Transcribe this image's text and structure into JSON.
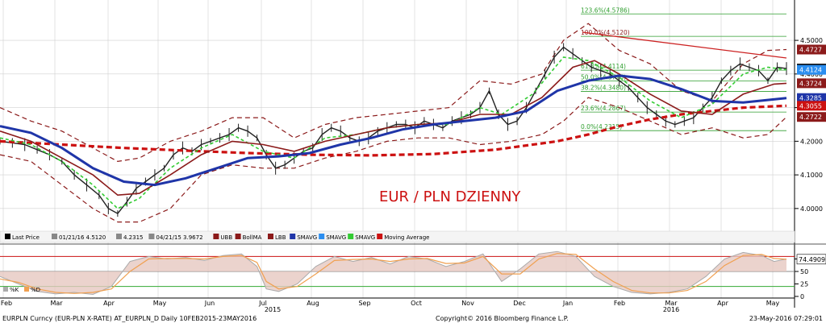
{
  "chart_data": {
    "type": "line",
    "title": "EUR / PLN DZIENNY",
    "footer": {
      "left": "EURPLN Curncy (EUR-PLN X-RATE) AT_EURPLN_D  Daily 10FEB2015-23MAY2016",
      "center": "Copyright© 2016 Bloomberg Finance L.P.",
      "right": "23-May-2016 07:29:01"
    },
    "legend": [
      {
        "label": "Last Price",
        "color": "#000000"
      },
      {
        "label": "01/21/16 4.5120",
        "color": "#888888"
      },
      {
        "label": "4.2315",
        "color": "#888888"
      },
      {
        "label": "04/21/15 3.9672",
        "color": "#888888"
      },
      {
        "label": "UBB",
        "color": "#8b1a1a"
      },
      {
        "label": "BollMA",
        "color": "#8b1a1a"
      },
      {
        "label": "LBB",
        "color": "#8b1a1a"
      },
      {
        "label": "SMAVG",
        "color": "#1f35a8"
      },
      {
        "label": "SMAVG",
        "color": "#2b8ef0"
      },
      {
        "label": "SMAVG",
        "color": "#33cc33"
      },
      {
        "label": "Moving Average",
        "color": "#cc1111"
      }
    ],
    "y_ticks": [
      "4.5000",
      "4.4000",
      "4.3000",
      "4.2000",
      "4.1000",
      "4.0000"
    ],
    "ylim": [
      3.935,
      4.62
    ],
    "x_labels": [
      "Feb",
      "Mar",
      "Apr",
      "May",
      "Jun",
      "Jul",
      "Aug",
      "Sep",
      "Oct",
      "Nov",
      "Dec",
      "Jan",
      "Feb",
      "Mar",
      "Apr",
      "May"
    ],
    "year_labels": [
      "2015",
      "2016"
    ],
    "fib": [
      {
        "label": "123.6%(4.5786)",
        "value": 4.5786
      },
      {
        "label": "100.0%(4.5120)",
        "value": 4.512
      },
      {
        "label": "61.8%(4.4114)",
        "value": 4.4114
      },
      {
        "label": "50.0%(4.3796)",
        "value": 4.3796
      },
      {
        "label": "38.2%(4.3480)",
        "value": 4.348
      },
      {
        "label": "23.6%(4.2867)",
        "value": 4.2867
      },
      {
        "label": "0.0%(4.2315)",
        "value": 4.2315
      }
    ],
    "price_tags": [
      {
        "label": "4.4727",
        "value": 4.4727,
        "color": "#8b1a1a"
      },
      {
        "label": "4.4161",
        "value": 4.4161,
        "color": "#000000"
      },
      {
        "label": "4.4124",
        "value": 4.4124,
        "color": "#2b8ef0"
      },
      {
        "label": "4.3724",
        "value": 4.3724,
        "color": "#8b1a1a"
      },
      {
        "label": "4.3285",
        "value": 4.3285,
        "color": "#1f35a8"
      },
      {
        "label": "4.3055",
        "value": 4.3055,
        "color": "#cc1111"
      },
      {
        "label": "4.2722",
        "value": 4.2722,
        "color": "#8b1a1a"
      }
    ],
    "lower": {
      "legend": [
        {
          "label": "%K",
          "color": "#aaaaaa"
        },
        {
          "label": "%D",
          "color": "#f0a050"
        }
      ],
      "ylim": [
        0,
        100
      ],
      "y_ticks": [
        "75",
        "50",
        "25",
        "0"
      ],
      "levels": [
        80,
        50,
        20
      ],
      "value_tag": "74.4909"
    },
    "series": {
      "price": [
        [
          0,
          4.2
        ],
        [
          4,
          4.195
        ],
        [
          8,
          4.19
        ],
        [
          12,
          4.175
        ],
        [
          16,
          4.16
        ],
        [
          20,
          4.14
        ],
        [
          24,
          4.1
        ],
        [
          28,
          4.07
        ],
        [
          32,
          4.04
        ],
        [
          35,
          4.0
        ],
        [
          38,
          3.985
        ],
        [
          41,
          4.02
        ],
        [
          44,
          4.06
        ],
        [
          47,
          4.08
        ],
        [
          50,
          4.1
        ],
        [
          53,
          4.12
        ],
        [
          56,
          4.16
        ],
        [
          59,
          4.18
        ],
        [
          62,
          4.17
        ],
        [
          65,
          4.19
        ],
        [
          68,
          4.2
        ],
        [
          71,
          4.21
        ],
        [
          74,
          4.22
        ],
        [
          77,
          4.24
        ],
        [
          80,
          4.23
        ],
        [
          83,
          4.21
        ],
        [
          86,
          4.16
        ],
        [
          89,
          4.12
        ],
        [
          92,
          4.13
        ],
        [
          95,
          4.15
        ],
        [
          98,
          4.17
        ],
        [
          101,
          4.18
        ],
        [
          104,
          4.22
        ],
        [
          107,
          4.24
        ],
        [
          110,
          4.23
        ],
        [
          113,
          4.21
        ],
        [
          116,
          4.2
        ],
        [
          119,
          4.21
        ],
        [
          122,
          4.23
        ],
        [
          125,
          4.24
        ],
        [
          128,
          4.25
        ],
        [
          131,
          4.25
        ],
        [
          134,
          4.24
        ],
        [
          137,
          4.26
        ],
        [
          140,
          4.25
        ],
        [
          143,
          4.24
        ],
        [
          146,
          4.26
        ],
        [
          149,
          4.27
        ],
        [
          152,
          4.28
        ],
        [
          155,
          4.3
        ],
        [
          158,
          4.35
        ],
        [
          161,
          4.28
        ],
        [
          164,
          4.25
        ],
        [
          167,
          4.26
        ],
        [
          170,
          4.3
        ],
        [
          173,
          4.35
        ],
        [
          176,
          4.4
        ],
        [
          179,
          4.45
        ],
        [
          182,
          4.48
        ],
        [
          185,
          4.46
        ],
        [
          188,
          4.44
        ],
        [
          191,
          4.42
        ],
        [
          194,
          4.41
        ],
        [
          197,
          4.4
        ],
        [
          200,
          4.38
        ],
        [
          203,
          4.36
        ],
        [
          206,
          4.33
        ],
        [
          209,
          4.3
        ],
        [
          212,
          4.28
        ],
        [
          215,
          4.26
        ],
        [
          218,
          4.25
        ],
        [
          221,
          4.26
        ],
        [
          224,
          4.27
        ],
        [
          227,
          4.3
        ],
        [
          230,
          4.33
        ],
        [
          233,
          4.38
        ],
        [
          236,
          4.41
        ],
        [
          239,
          4.43
        ],
        [
          242,
          4.42
        ],
        [
          245,
          4.41
        ],
        [
          248,
          4.38
        ],
        [
          251,
          4.42
        ],
        [
          254,
          4.4161
        ]
      ],
      "smavg_blue": [
        [
          0,
          4.245
        ],
        [
          10,
          4.225
        ],
        [
          20,
          4.18
        ],
        [
          30,
          4.12
        ],
        [
          40,
          4.08
        ],
        [
          50,
          4.07
        ],
        [
          60,
          4.09
        ],
        [
          70,
          4.12
        ],
        [
          80,
          4.15
        ],
        [
          90,
          4.155
        ],
        [
          100,
          4.165
        ],
        [
          110,
          4.19
        ],
        [
          120,
          4.21
        ],
        [
          130,
          4.235
        ],
        [
          140,
          4.25
        ],
        [
          150,
          4.26
        ],
        [
          160,
          4.27
        ],
        [
          170,
          4.29
        ],
        [
          180,
          4.35
        ],
        [
          190,
          4.38
        ],
        [
          200,
          4.395
        ],
        [
          210,
          4.385
        ],
        [
          220,
          4.355
        ],
        [
          230,
          4.32
        ],
        [
          240,
          4.315
        ],
        [
          254,
          4.3285
        ]
      ],
      "smavg_dark": [
        [
          0,
          4.23
        ],
        [
          10,
          4.2
        ],
        [
          20,
          4.15
        ],
        [
          30,
          4.1
        ],
        [
          38,
          4.04
        ],
        [
          45,
          4.045
        ],
        [
          55,
          4.1
        ],
        [
          65,
          4.16
        ],
        [
          75,
          4.2
        ],
        [
          85,
          4.19
        ],
        [
          95,
          4.17
        ],
        [
          105,
          4.2
        ],
        [
          115,
          4.22
        ],
        [
          125,
          4.24
        ],
        [
          135,
          4.25
        ],
        [
          145,
          4.255
        ],
        [
          155,
          4.28
        ],
        [
          165,
          4.28
        ],
        [
          175,
          4.33
        ],
        [
          185,
          4.42
        ],
        [
          192,
          4.44
        ],
        [
          200,
          4.4
        ],
        [
          210,
          4.34
        ],
        [
          220,
          4.29
        ],
        [
          230,
          4.28
        ],
        [
          240,
          4.34
        ],
        [
          250,
          4.37
        ],
        [
          254,
          4.3724
        ]
      ],
      "smavg_green": [
        [
          0,
          4.21
        ],
        [
          10,
          4.19
        ],
        [
          20,
          4.14
        ],
        [
          30,
          4.07
        ],
        [
          38,
          4.0
        ],
        [
          45,
          4.03
        ],
        [
          55,
          4.12
        ],
        [
          65,
          4.18
        ],
        [
          75,
          4.22
        ],
        [
          85,
          4.17
        ],
        [
          95,
          4.15
        ],
        [
          105,
          4.21
        ],
        [
          115,
          4.22
        ],
        [
          125,
          4.24
        ],
        [
          135,
          4.25
        ],
        [
          145,
          4.25
        ],
        [
          155,
          4.3
        ],
        [
          162,
          4.28
        ],
        [
          172,
          4.34
        ],
        [
          182,
          4.45
        ],
        [
          190,
          4.44
        ],
        [
          200,
          4.39
        ],
        [
          210,
          4.32
        ],
        [
          220,
          4.27
        ],
        [
          230,
          4.31
        ],
        [
          240,
          4.4
        ],
        [
          248,
          4.42
        ],
        [
          254,
          4.4124
        ]
      ],
      "moving_avg_red": [
        [
          0,
          4.2
        ],
        [
          20,
          4.19
        ],
        [
          40,
          4.18
        ],
        [
          60,
          4.172
        ],
        [
          80,
          4.165
        ],
        [
          100,
          4.16
        ],
        [
          120,
          4.158
        ],
        [
          140,
          4.162
        ],
        [
          160,
          4.175
        ],
        [
          180,
          4.2
        ],
        [
          190,
          4.22
        ],
        [
          200,
          4.245
        ],
        [
          210,
          4.265
        ],
        [
          220,
          4.28
        ],
        [
          230,
          4.29
        ],
        [
          240,
          4.3
        ],
        [
          254,
          4.3055
        ]
      ],
      "ubb": [
        [
          0,
          4.3
        ],
        [
          10,
          4.26
        ],
        [
          20,
          4.23
        ],
        [
          30,
          4.18
        ],
        [
          38,
          4.14
        ],
        [
          45,
          4.15
        ],
        [
          55,
          4.2
        ],
        [
          65,
          4.23
        ],
        [
          75,
          4.27
        ],
        [
          85,
          4.27
        ],
        [
          95,
          4.21
        ],
        [
          105,
          4.25
        ],
        [
          115,
          4.27
        ],
        [
          125,
          4.28
        ],
        [
          135,
          4.29
        ],
        [
          145,
          4.3
        ],
        [
          155,
          4.38
        ],
        [
          165,
          4.37
        ],
        [
          175,
          4.4
        ],
        [
          182,
          4.5
        ],
        [
          190,
          4.55
        ],
        [
          200,
          4.47
        ],
        [
          210,
          4.43
        ],
        [
          220,
          4.35
        ],
        [
          230,
          4.32
        ],
        [
          240,
          4.43
        ],
        [
          248,
          4.47
        ],
        [
          254,
          4.4727
        ]
      ],
      "lbb": [
        [
          0,
          4.16
        ],
        [
          10,
          4.14
        ],
        [
          20,
          4.07
        ],
        [
          30,
          4.0
        ],
        [
          38,
          3.96
        ],
        [
          45,
          3.96
        ],
        [
          55,
          4.0
        ],
        [
          65,
          4.1
        ],
        [
          75,
          4.13
        ],
        [
          85,
          4.12
        ],
        [
          95,
          4.12
        ],
        [
          105,
          4.15
        ],
        [
          115,
          4.17
        ],
        [
          125,
          4.2
        ],
        [
          135,
          4.21
        ],
        [
          145,
          4.21
        ],
        [
          155,
          4.19
        ],
        [
          165,
          4.2
        ],
        [
          175,
          4.22
        ],
        [
          182,
          4.26
        ],
        [
          190,
          4.33
        ],
        [
          200,
          4.3
        ],
        [
          210,
          4.26
        ],
        [
          220,
          4.22
        ],
        [
          230,
          4.24
        ],
        [
          240,
          4.21
        ],
        [
          248,
          4.22
        ],
        [
          254,
          4.2722
        ]
      ],
      "k": [
        [
          0,
          40
        ],
        [
          6,
          25
        ],
        [
          12,
          10
        ],
        [
          18,
          5
        ],
        [
          24,
          8
        ],
        [
          30,
          4
        ],
        [
          36,
          20
        ],
        [
          42,
          70
        ],
        [
          48,
          80
        ],
        [
          54,
          75
        ],
        [
          60,
          78
        ],
        [
          66,
          72
        ],
        [
          72,
          82
        ],
        [
          78,
          85
        ],
        [
          83,
          60
        ],
        [
          86,
          15
        ],
        [
          90,
          10
        ],
        [
          96,
          25
        ],
        [
          102,
          60
        ],
        [
          108,
          80
        ],
        [
          114,
          70
        ],
        [
          120,
          78
        ],
        [
          126,
          65
        ],
        [
          132,
          80
        ],
        [
          138,
          75
        ],
        [
          144,
          60
        ],
        [
          150,
          70
        ],
        [
          156,
          85
        ],
        [
          162,
          30
        ],
        [
          168,
          55
        ],
        [
          174,
          85
        ],
        [
          180,
          90
        ],
        [
          186,
          80
        ],
        [
          192,
          40
        ],
        [
          198,
          20
        ],
        [
          204,
          8
        ],
        [
          210,
          5
        ],
        [
          216,
          8
        ],
        [
          222,
          15
        ],
        [
          228,
          40
        ],
        [
          234,
          75
        ],
        [
          240,
          88
        ],
        [
          246,
          82
        ],
        [
          250,
          70
        ],
        [
          254,
          75
        ]
      ],
      "d": [
        [
          0,
          35
        ],
        [
          6,
          28
        ],
        [
          12,
          15
        ],
        [
          18,
          8
        ],
        [
          24,
          6
        ],
        [
          30,
          8
        ],
        [
          36,
          15
        ],
        [
          42,
          50
        ],
        [
          48,
          75
        ],
        [
          54,
          76
        ],
        [
          60,
          76
        ],
        [
          66,
          75
        ],
        [
          72,
          80
        ],
        [
          78,
          82
        ],
        [
          83,
          68
        ],
        [
          86,
          30
        ],
        [
          90,
          15
        ],
        [
          96,
          20
        ],
        [
          102,
          45
        ],
        [
          108,
          72
        ],
        [
          114,
          74
        ],
        [
          120,
          75
        ],
        [
          126,
          70
        ],
        [
          132,
          75
        ],
        [
          138,
          76
        ],
        [
          144,
          66
        ],
        [
          150,
          67
        ],
        [
          156,
          80
        ],
        [
          162,
          45
        ],
        [
          168,
          45
        ],
        [
          174,
          75
        ],
        [
          180,
          86
        ],
        [
          186,
          84
        ],
        [
          192,
          55
        ],
        [
          198,
          30
        ],
        [
          204,
          12
        ],
        [
          210,
          7
        ],
        [
          216,
          7
        ],
        [
          222,
          12
        ],
        [
          228,
          30
        ],
        [
          234,
          62
        ],
        [
          240,
          82
        ],
        [
          246,
          84
        ],
        [
          250,
          76
        ],
        [
          254,
          74.4909
        ]
      ]
    }
  }
}
